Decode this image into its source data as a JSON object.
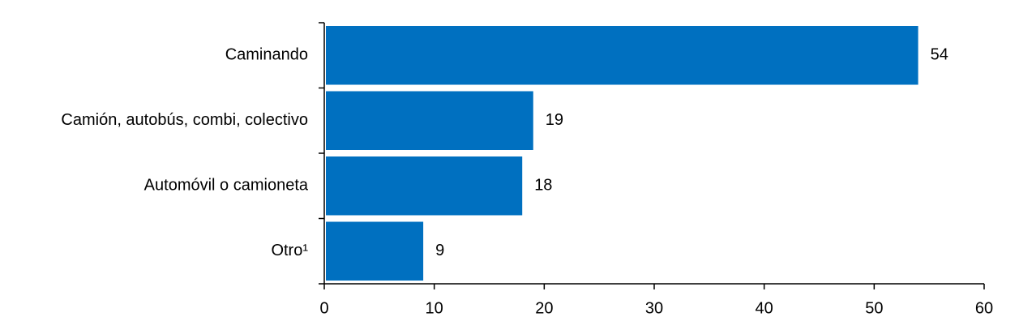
{
  "chart_data": {
    "type": "hbar",
    "categories": [
      "Caminando",
      "Camión, autobús, combi, colectivo",
      "Automóvil o camioneta",
      "Otro¹"
    ],
    "values": [
      54,
      19,
      18,
      9
    ],
    "color": "#0070c0",
    "xlim": [
      0,
      60
    ],
    "xticks": [
      0,
      10,
      20,
      30,
      40,
      50,
      60
    ],
    "grid": false
  }
}
